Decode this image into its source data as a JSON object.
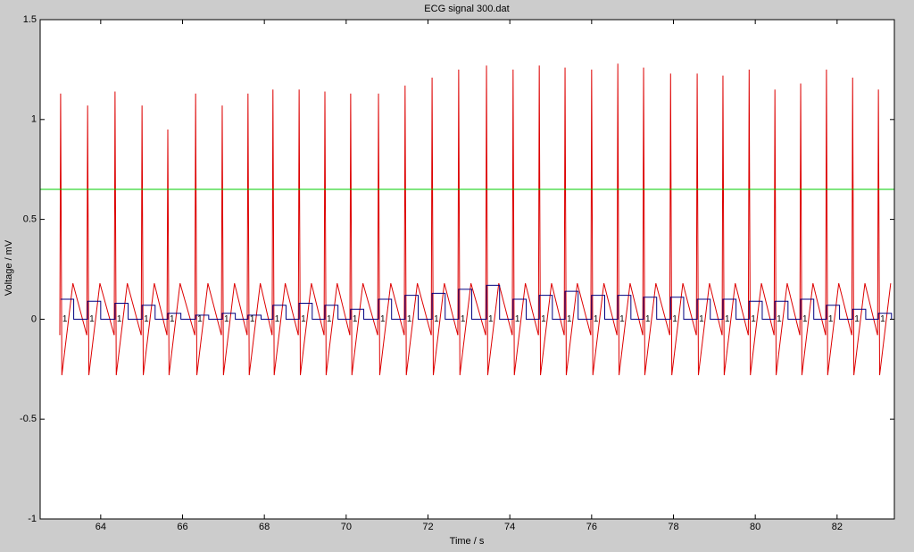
{
  "chart_data": {
    "type": "line",
    "title": "ECG signal 300.dat",
    "x_label": "Time / s",
    "y_label": "Voltage / mV",
    "xlim": [
      62.52,
      83.4
    ],
    "ylim": [
      -1,
      1.5
    ],
    "xticks": [
      64,
      66,
      68,
      70,
      72,
      74,
      76,
      78,
      80,
      82
    ],
    "yticks": [
      -1,
      -0.5,
      0,
      0.5,
      1,
      1.5
    ],
    "series": [
      {
        "color": "#dd0000",
        "x": [
          63.0,
          63.02,
          63.05,
          63.32,
          63.66,
          63.68,
          63.71,
          63.98,
          64.33,
          64.35,
          64.38,
          64.65,
          64.99,
          65.01,
          65.04,
          65.31,
          65.62,
          65.64,
          65.67,
          65.94,
          66.3,
          66.32,
          66.35,
          66.62,
          66.95,
          66.97,
          67.0,
          67.27,
          67.58,
          67.6,
          67.63,
          67.9,
          68.19,
          68.21,
          68.24,
          68.51,
          68.83,
          68.85,
          68.88,
          69.15,
          69.46,
          69.48,
          69.51,
          69.78,
          70.09,
          70.11,
          70.14,
          70.41,
          70.77,
          70.79,
          70.82,
          71.09,
          71.42,
          71.44,
          71.47,
          71.74,
          72.08,
          72.1,
          72.13,
          72.4,
          72.73,
          72.75,
          72.78,
          73.05,
          73.41,
          73.43,
          73.46,
          73.73,
          74.06,
          74.08,
          74.11,
          74.38,
          74.7,
          74.72,
          74.75,
          75.02,
          75.33,
          75.35,
          75.38,
          75.65,
          75.98,
          76.0,
          76.03,
          76.3,
          76.62,
          76.64,
          76.67,
          76.94,
          77.25,
          77.27,
          77.3,
          77.57,
          77.91,
          77.93,
          77.96,
          78.23,
          78.56,
          78.58,
          78.61,
          78.88,
          79.19,
          79.21,
          79.24,
          79.51,
          79.83,
          79.85,
          79.88,
          80.15,
          80.46,
          80.48,
          80.51,
          80.78,
          81.09,
          81.11,
          81.14,
          81.41,
          81.72,
          81.74,
          81.77,
          82.04,
          82.36,
          82.38,
          82.41,
          82.68,
          82.99,
          83.01,
          83.04,
          83.31
        ],
        "values": [
          -0.08,
          1.13,
          -0.28,
          0.18,
          -0.08,
          1.07,
          -0.28,
          0.18,
          -0.08,
          1.14,
          -0.28,
          0.18,
          -0.08,
          1.07,
          -0.28,
          0.18,
          -0.08,
          0.95,
          -0.28,
          0.18,
          -0.08,
          1.13,
          -0.28,
          0.18,
          -0.08,
          1.07,
          -0.28,
          0.18,
          -0.08,
          1.13,
          -0.28,
          0.18,
          -0.08,
          1.15,
          -0.28,
          0.18,
          -0.08,
          1.15,
          -0.28,
          0.18,
          -0.08,
          1.14,
          -0.28,
          0.18,
          -0.08,
          1.13,
          -0.28,
          0.18,
          -0.08,
          1.13,
          -0.28,
          0.18,
          -0.08,
          1.17,
          -0.28,
          0.18,
          -0.08,
          1.21,
          -0.28,
          0.18,
          -0.08,
          1.25,
          -0.28,
          0.18,
          -0.08,
          1.27,
          -0.28,
          0.18,
          -0.08,
          1.25,
          -0.28,
          0.18,
          -0.08,
          1.27,
          -0.28,
          0.18,
          -0.08,
          1.26,
          -0.28,
          0.18,
          -0.08,
          1.25,
          -0.28,
          0.18,
          -0.08,
          1.28,
          -0.28,
          0.18,
          -0.08,
          1.26,
          -0.28,
          0.18,
          -0.08,
          1.23,
          -0.28,
          0.18,
          -0.08,
          1.23,
          -0.28,
          0.18,
          -0.08,
          1.22,
          -0.28,
          0.18,
          -0.08,
          1.25,
          -0.28,
          0.18,
          -0.08,
          1.15,
          -0.28,
          0.18,
          -0.08,
          1.18,
          -0.28,
          0.18,
          -0.08,
          1.25,
          -0.28,
          0.18,
          -0.08,
          1.21,
          -0.28,
          0.18,
          -0.08,
          1.15,
          -0.28,
          0.18
        ]
      },
      {
        "color": "#00cc00",
        "x": [
          62.52,
          83.4
        ],
        "values": [
          0.65,
          0.65
        ]
      },
      {
        "color": "#000080",
        "step": true,
        "x": [
          63.02,
          63.34,
          63.68,
          64.0,
          64.35,
          64.67,
          65.01,
          65.33,
          65.64,
          65.96,
          66.32,
          66.64,
          66.97,
          67.29,
          67.6,
          67.92,
          68.21,
          68.53,
          68.85,
          69.17,
          69.48,
          69.8,
          70.11,
          70.43,
          70.79,
          71.11,
          71.44,
          71.76,
          72.1,
          72.42,
          72.75,
          73.07,
          73.43,
          73.75,
          74.08,
          74.4,
          74.72,
          75.04,
          75.35,
          75.67,
          76.0,
          76.32,
          76.64,
          76.96,
          77.27,
          77.59,
          77.93,
          78.25,
          78.58,
          78.9,
          79.21,
          79.53,
          79.85,
          80.17,
          80.48,
          80.8,
          81.11,
          81.43,
          81.74,
          82.06,
          82.38,
          82.7,
          83.01,
          83.33
        ],
        "values": [
          0.1,
          0,
          0.09,
          0,
          0.08,
          0,
          0.07,
          0,
          0.03,
          0,
          0.02,
          0,
          0.03,
          0,
          0.02,
          0,
          0.07,
          0,
          0.08,
          0,
          0.07,
          0,
          0.05,
          0,
          0.1,
          0,
          0.12,
          0,
          0.13,
          0,
          0.15,
          0,
          0.17,
          0,
          0.1,
          0,
          0.12,
          0,
          0.14,
          0,
          0.12,
          0,
          0.12,
          0,
          0.11,
          0,
          0.11,
          0,
          0.1,
          0,
          0.1,
          0,
          0.09,
          0,
          0.09,
          0,
          0.1,
          0,
          0.07,
          0,
          0.05,
          0,
          0.03,
          0
        ]
      }
    ],
    "peak_labels": {
      "text": "1",
      "y": 0,
      "x": [
        63.02,
        63.68,
        64.35,
        65.01,
        65.64,
        66.32,
        66.97,
        67.6,
        68.21,
        68.85,
        69.48,
        70.11,
        70.79,
        71.44,
        72.1,
        72.75,
        73.43,
        74.08,
        74.72,
        75.35,
        76.0,
        76.64,
        77.27,
        77.93,
        78.58,
        79.21,
        79.85,
        80.48,
        81.11,
        81.74,
        82.38,
        83.01
      ]
    }
  }
}
